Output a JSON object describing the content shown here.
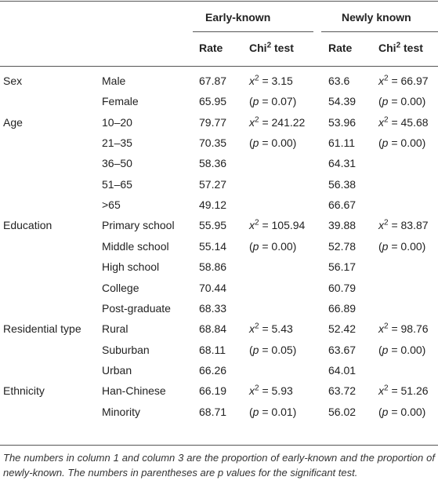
{
  "header": {
    "groups": [
      "Early-known",
      "Newly known"
    ],
    "columns": [
      "Rate",
      [
        "Chi",
        "2",
        "test"
      ],
      "Rate",
      [
        "Chi",
        "2",
        "test"
      ]
    ]
  },
  "table": {
    "groups": [
      {
        "label": "Sex",
        "rows": [
          {
            "category": "Male",
            "early_rate": "67.87",
            "early_test": [
              "x",
              "2",
              " = 3.15"
            ],
            "newly_rate": "63.6",
            "newly_test": [
              "x",
              "2",
              " = 66.97"
            ]
          },
          {
            "category": "Female",
            "early_rate": "65.95",
            "early_test": [
              "(",
              "p",
              " = 0.07)"
            ],
            "newly_rate": "54.39",
            "newly_test": [
              "(",
              "p",
              " = 0.00)"
            ]
          }
        ]
      },
      {
        "label": "Age",
        "rows": [
          {
            "category": "10–20",
            "early_rate": "79.77",
            "early_test": [
              "x",
              "2",
              " = 241.22"
            ],
            "newly_rate": "53.96",
            "newly_test": [
              "x",
              "2",
              " = 45.68"
            ]
          },
          {
            "category": "21–35",
            "early_rate": "70.35",
            "early_test": [
              "(",
              "p",
              " = 0.00)"
            ],
            "newly_rate": "61.11",
            "newly_test": [
              "(",
              "p",
              " = 0.00)"
            ]
          },
          {
            "category": "36–50",
            "early_rate": "58.36",
            "newly_rate": "64.31"
          },
          {
            "category": "51–65",
            "early_rate": "57.27",
            "newly_rate": "56.38"
          },
          {
            "category": ">65",
            "early_rate": "49.12",
            "newly_rate": "66.67"
          }
        ]
      },
      {
        "label": "Education",
        "rows": [
          {
            "category": "Primary school",
            "early_rate": "55.95",
            "early_test": [
              "x",
              "2",
              " = 105.94"
            ],
            "newly_rate": "39.88",
            "newly_test": [
              "x",
              "2",
              " = 83.87"
            ]
          },
          {
            "category": "Middle school",
            "early_rate": "55.14",
            "early_test": [
              "(",
              "p",
              " = 0.00)"
            ],
            "newly_rate": "52.78",
            "newly_test": [
              "(",
              "p",
              " = 0.00)"
            ]
          },
          {
            "category": "High school",
            "early_rate": "58.86",
            "newly_rate": "56.17"
          },
          {
            "category": "College",
            "early_rate": "70.44",
            "newly_rate": "60.79"
          },
          {
            "category": "Post-graduate",
            "early_rate": "68.33",
            "newly_rate": "66.89"
          }
        ]
      },
      {
        "label": "Residential type",
        "rows": [
          {
            "category": "Rural",
            "early_rate": "68.84",
            "early_test": [
              "x",
              "2",
              " = 5.43"
            ],
            "newly_rate": "52.42",
            "newly_test": [
              "x",
              "2",
              " = 98.76"
            ]
          },
          {
            "category": "Suburban",
            "early_rate": "68.11",
            "early_test": [
              "(",
              "p",
              " = 0.05)"
            ],
            "newly_rate": "63.67",
            "newly_test": [
              "(",
              "p",
              " = 0.00)"
            ]
          },
          {
            "category": "Urban",
            "early_rate": "66.26",
            "newly_rate": "64.01"
          }
        ]
      },
      {
        "label": "Ethnicity",
        "rows": [
          {
            "category": "Han-Chinese",
            "early_rate": "66.19",
            "early_test": [
              "x",
              "2",
              " = 5.93"
            ],
            "newly_rate": "63.72",
            "newly_test": [
              "x",
              "2",
              " = 51.26"
            ]
          },
          {
            "category": "Minority",
            "early_rate": "68.71",
            "early_test": [
              "(",
              "p",
              " = 0.01)"
            ],
            "newly_rate": "56.02",
            "newly_test": [
              "(",
              "p",
              " = 0.00)"
            ]
          }
        ]
      }
    ]
  },
  "footnote": "The numbers in column 1 and column 3 are the proportion of early-known and the proportion of newly-known. The numbers in parentheses are p values for the significant test."
}
